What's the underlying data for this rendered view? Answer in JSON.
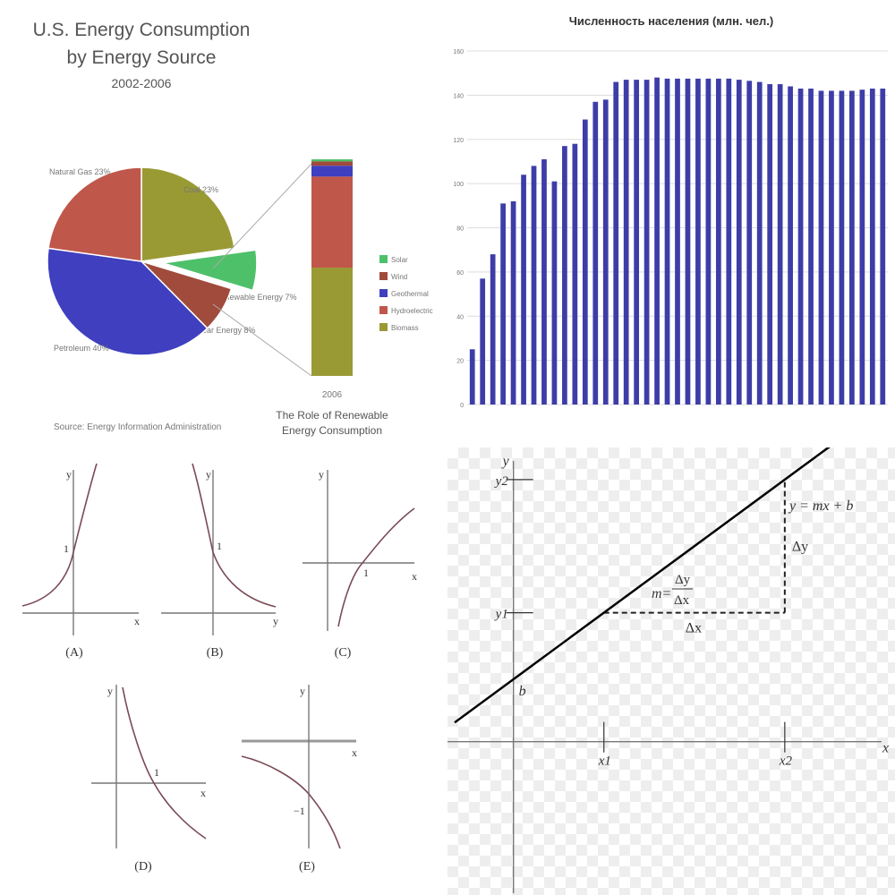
{
  "chart_data": [
    {
      "type": "pie",
      "title": "U.S. Energy Consumption",
      "title_line2": "by Energy Source",
      "subtitle": "2002-2006",
      "slices": [
        {
          "label": "Coal 23%",
          "value": 23,
          "color": "#9a9a35"
        },
        {
          "label": "Renewable Energy 7%",
          "value": 7,
          "color": "#4ec06a",
          "exploded": true
        },
        {
          "label": "Nuclear Energy 8%",
          "value": 8,
          "color": "#a04b3c"
        },
        {
          "label": "Petroleum 40%",
          "value": 40,
          "color": "#3f3fbf"
        },
        {
          "label": "Natural Gas 23%",
          "value": 23,
          "color": "#c0574b"
        }
      ],
      "source": "Source: Energy Information Administration"
    },
    {
      "type": "bar",
      "stacked": true,
      "categories": [
        "2006"
      ],
      "series": [
        {
          "name": "Solar",
          "values": [
            1
          ],
          "color": "#4ec06a"
        },
        {
          "name": "Wind",
          "values": [
            2
          ],
          "color": "#a04b3c"
        },
        {
          "name": "Geothermal",
          "values": [
            5
          ],
          "color": "#3f3fbf"
        },
        {
          "name": "Hydroelectric",
          "values": [
            42
          ],
          "color": "#c0574b"
        },
        {
          "name": "Biomass",
          "values": [
            50
          ],
          "color": "#9a9a35"
        }
      ],
      "caption": "The Role of Renewable",
      "caption_line2": "Energy Consumption",
      "legend": "right"
    },
    {
      "type": "bar",
      "title": "Численность населения (млн. чел.)",
      "values": [
        25,
        57,
        68,
        91,
        92,
        104,
        108,
        111,
        101,
        117,
        118,
        129,
        137,
        138,
        146,
        147,
        147,
        147,
        148,
        147.5,
        147.5,
        147.5,
        147.5,
        147.5,
        147.5,
        147.5,
        147,
        146.5,
        146,
        145,
        145,
        144,
        143,
        143,
        142,
        142,
        142,
        142,
        142.5,
        143,
        143
      ],
      "ylim": [
        0,
        160
      ],
      "yticks": [
        "0",
        "20",
        "40",
        "60",
        "80",
        "100",
        "120",
        "140",
        "160"
      ],
      "color": "#3d3da8",
      "grid": true
    },
    {
      "type": "line",
      "title": "",
      "panels": [
        {
          "label": "(A)",
          "curve": "exponential growth",
          "marks": [
            "1"
          ],
          "axes": [
            "x",
            "y"
          ]
        },
        {
          "label": "(B)",
          "curve": "exponential decay",
          "marks": [
            "1"
          ],
          "axes": [
            "y",
            "y"
          ]
        },
        {
          "label": "(C)",
          "curve": "logarithm",
          "marks": [
            "1"
          ],
          "axes": [
            "x",
            "y"
          ]
        },
        {
          "label": "(D)",
          "curve": "decreasing logarithm",
          "marks": [
            "1"
          ],
          "axes": [
            "x",
            "y"
          ]
        },
        {
          "label": "(E)",
          "curve": "decreasing, through -1",
          "marks": [
            "−1"
          ],
          "axes": [
            "x",
            "y"
          ]
        }
      ]
    },
    {
      "type": "line",
      "equation": "y = mx + b",
      "slope_num": "Δy",
      "slope_den": "Δx",
      "slope_prefix": "m=",
      "dx_label": "Δx",
      "dy_label": "Δy",
      "intercept_label": "b",
      "axis_x_label": "x",
      "axis_y_label": "y",
      "x_marks": [
        "x1",
        "x2"
      ],
      "y_marks": [
        "y1",
        "y2"
      ],
      "x1": 1,
      "x2": 3,
      "b": 0.6,
      "m": 0.64,
      "xlim": [
        -0.65,
        4.1
      ],
      "ylim": [
        -0.7,
        2.7
      ]
    }
  ]
}
